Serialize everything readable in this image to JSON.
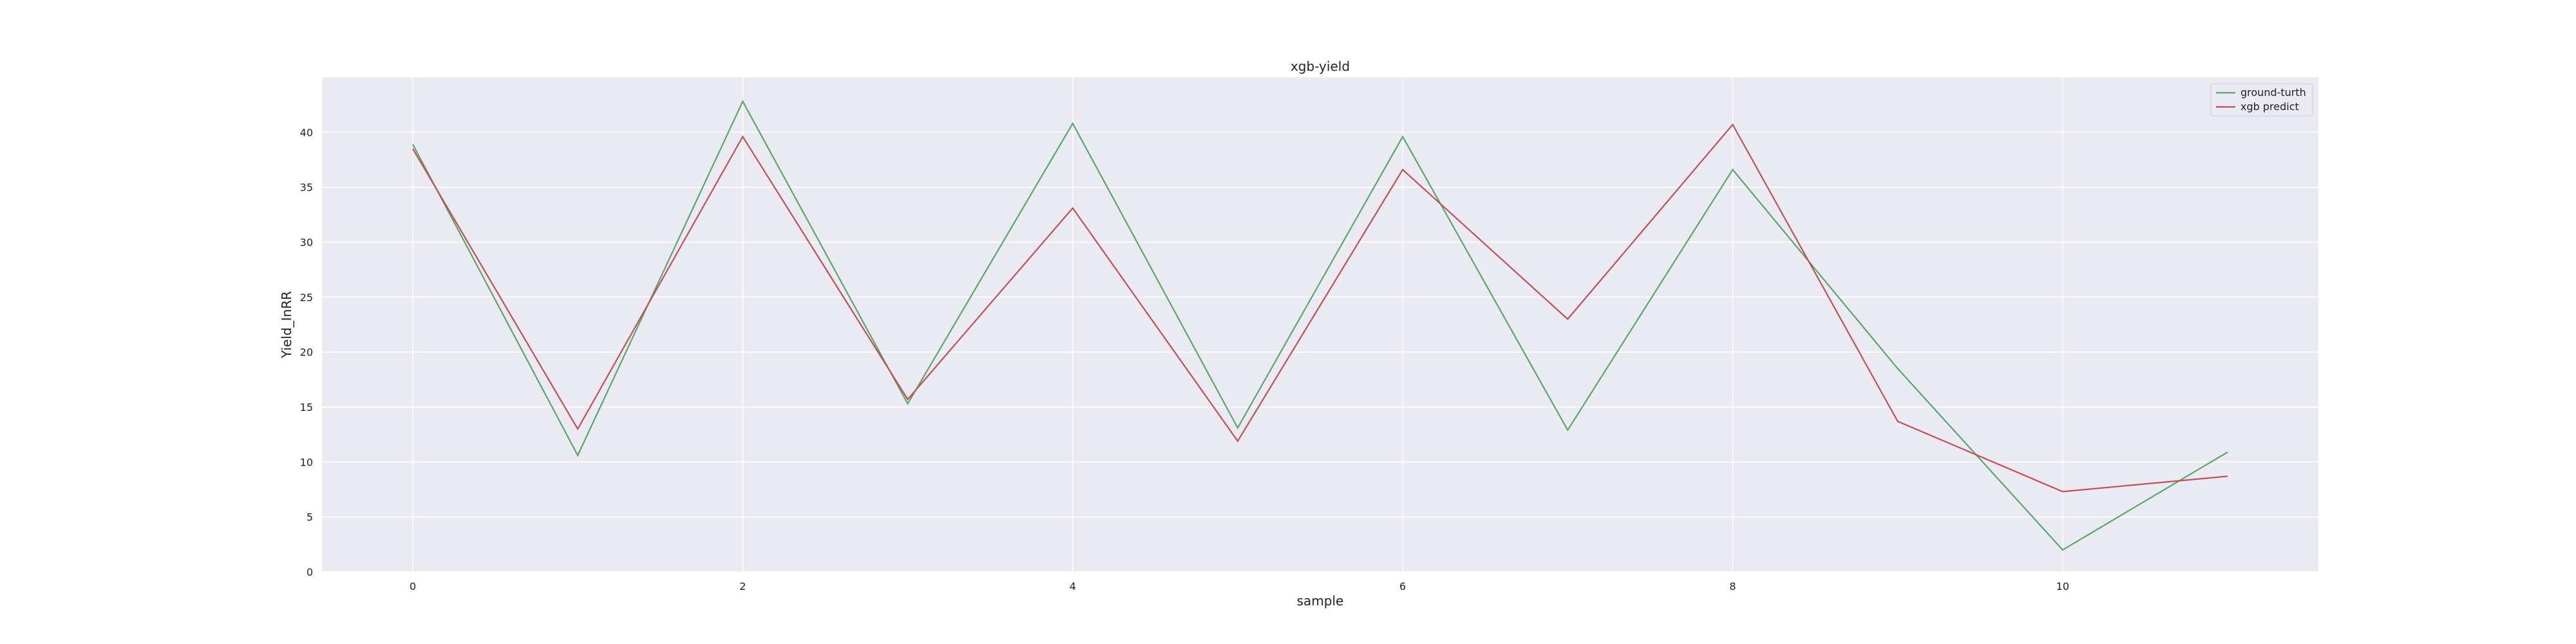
{
  "chart_data": {
    "type": "line",
    "title": "xgb-yield",
    "xlabel": "sample",
    "ylabel": "Yield_InRR",
    "x": [
      0,
      1,
      2,
      3,
      4,
      5,
      6,
      7,
      8,
      9,
      10,
      11
    ],
    "xticks": [
      0,
      2,
      4,
      6,
      8,
      10
    ],
    "yticks": [
      0,
      5,
      10,
      15,
      20,
      25,
      30,
      35,
      40
    ],
    "xlim": [
      -0.55,
      11.55
    ],
    "ylim": [
      0,
      45
    ],
    "grid": true,
    "legend_position": "top-right",
    "background_color": "#eaeaf2",
    "series": [
      {
        "name": "ground-turth",
        "color": "#55a868",
        "values": [
          38.9,
          10.6,
          42.8,
          15.3,
          40.8,
          13.1,
          39.6,
          12.9,
          36.6,
          18.5,
          2.0,
          10.9
        ]
      },
      {
        "name": "xgb predict",
        "color": "#c44e52",
        "values": [
          38.5,
          13.0,
          39.6,
          15.7,
          33.1,
          11.9,
          36.6,
          23.0,
          40.7,
          13.7,
          7.3,
          8.7
        ]
      }
    ]
  }
}
